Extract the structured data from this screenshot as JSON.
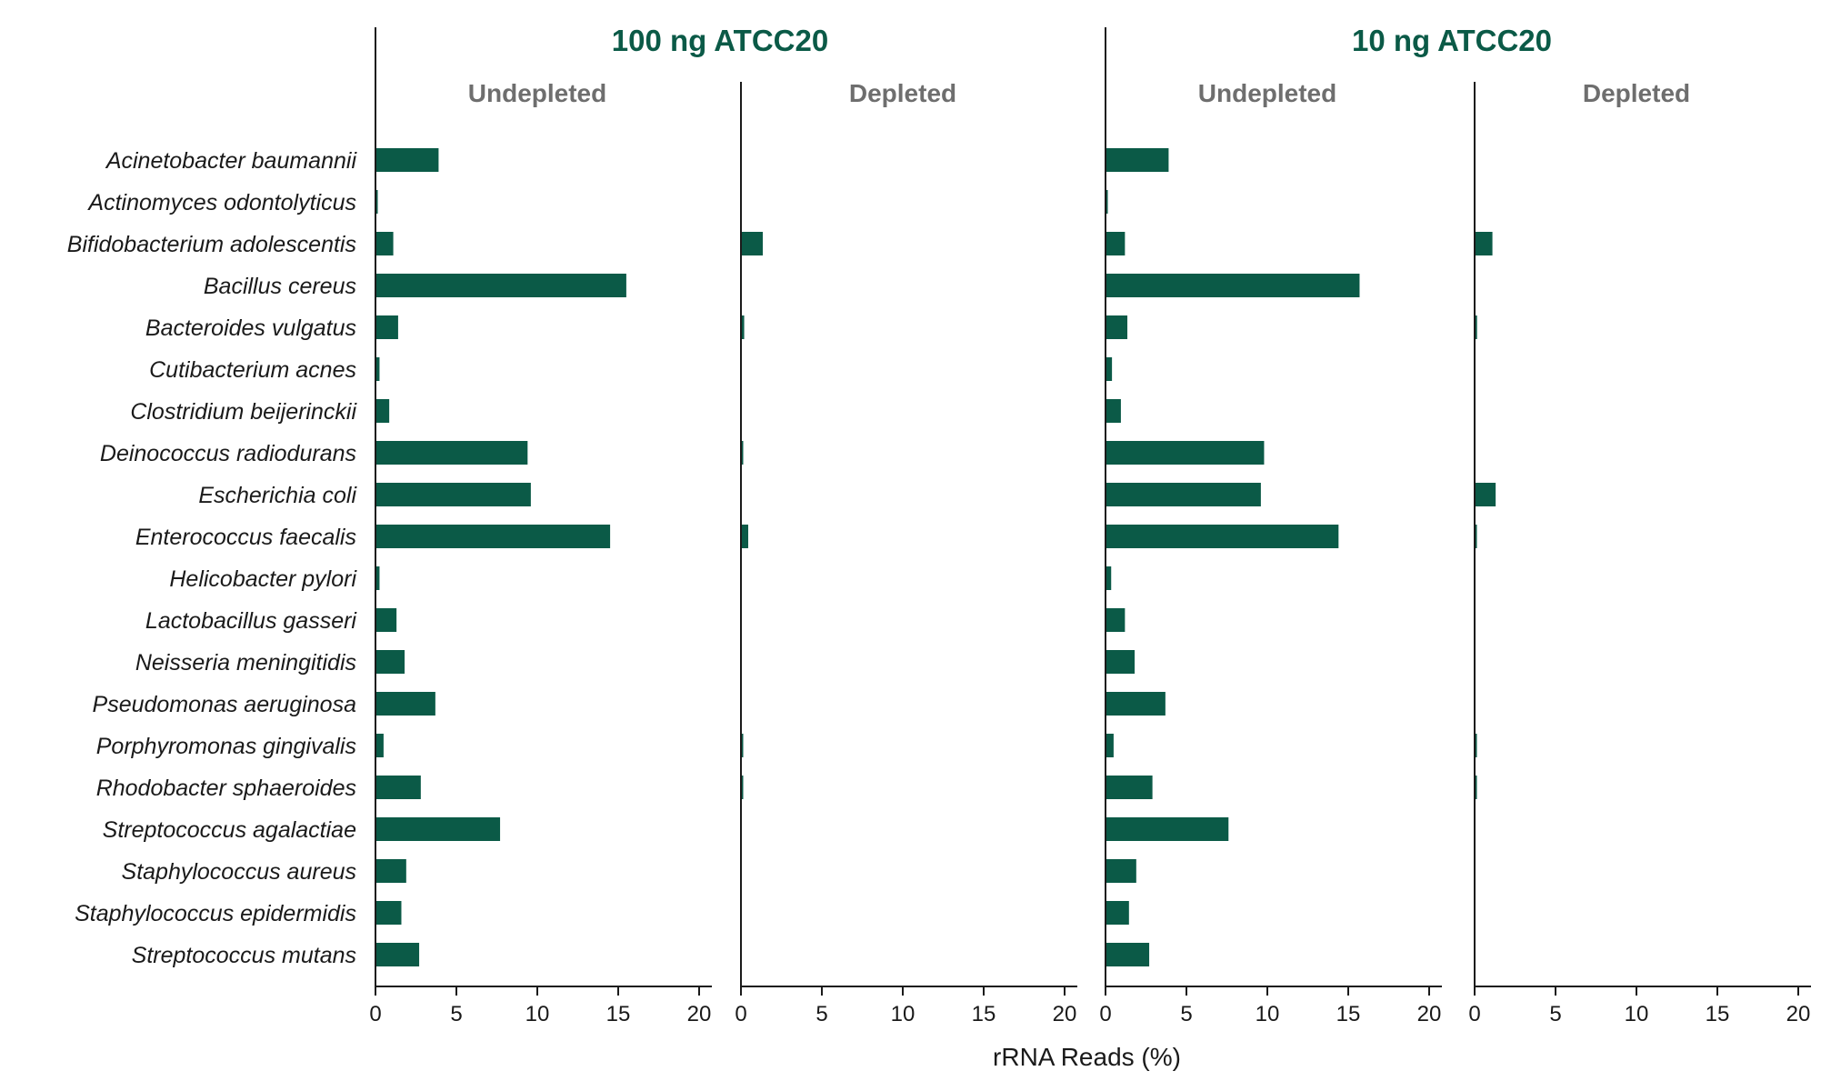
{
  "chart_data": {
    "type": "bar",
    "orientation": "horizontal",
    "color": "#0b5a47",
    "xlabel": "rRNA Reads (%)",
    "xlim": [
      0,
      20
    ],
    "xticks": [
      0,
      5,
      10,
      15,
      20
    ],
    "categories": [
      "Acinetobacter baumannii",
      "Actinomyces odontolyticus",
      "Bifidobacterium adolescentis",
      "Bacillus cereus",
      "Bacteroides vulgatus",
      "Cutibacterium acnes",
      "Clostridium beijerinckii",
      "Deinococcus radiodurans",
      "Escherichia coli",
      "Enterococcus faecalis",
      "Helicobacter pylori",
      "Lactobacillus gasseri",
      "Neisseria meningitidis",
      "Pseudomonas aeruginosa",
      "Porphyromonas gingivalis",
      "Rhodobacter sphaeroides",
      "Streptococcus agalactiae",
      "Staphylococcus aureus",
      "Staphylococcus epidermidis",
      "Streptococcus mutans"
    ],
    "groups": [
      {
        "title": "100 ng ATCC20",
        "panels": [
          {
            "title": "Undepleted",
            "values": [
              3.9,
              0.1,
              1.1,
              15.5,
              1.4,
              0.25,
              0.85,
              9.4,
              9.6,
              14.5,
              0.25,
              1.3,
              1.8,
              3.7,
              0.5,
              2.8,
              7.7,
              1.9,
              1.6,
              2.7
            ]
          },
          {
            "title": "Depleted",
            "values": [
              0,
              0,
              1.35,
              0,
              0.2,
              0,
              0,
              0.1,
              0,
              0.45,
              0,
              0,
              0,
              0,
              0.1,
              0.1,
              0,
              0,
              0,
              0
            ]
          }
        ]
      },
      {
        "title": "10 ng ATCC20",
        "panels": [
          {
            "title": "Undepleted",
            "values": [
              3.9,
              0.1,
              1.2,
              15.7,
              1.35,
              0.4,
              0.95,
              9.8,
              9.6,
              14.4,
              0.35,
              1.2,
              1.8,
              3.7,
              0.5,
              2.9,
              7.6,
              1.9,
              1.45,
              2.7
            ]
          },
          {
            "title": "Depleted",
            "values": [
              0,
              0,
              1.1,
              0,
              0.15,
              0,
              0,
              0,
              1.3,
              0.1,
              0,
              0,
              0,
              0,
              0.1,
              0.1,
              0,
              0,
              0,
              0
            ]
          }
        ]
      }
    ]
  }
}
